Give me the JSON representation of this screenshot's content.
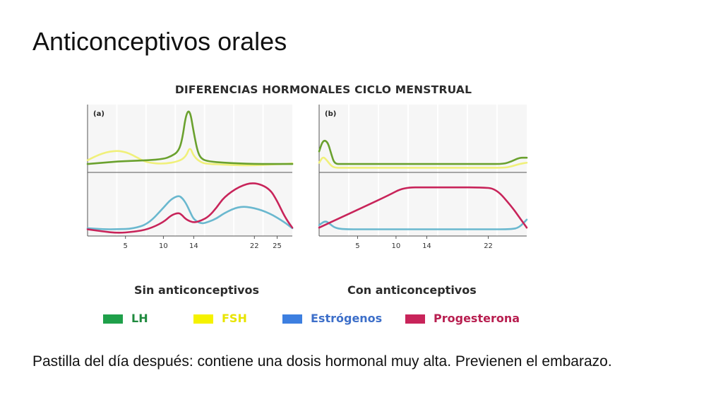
{
  "slide": {
    "title": "Anticonceptivos orales",
    "body_text": "Pastilla del día después: contiene una dosis hormonal muy alta. Previenen el embarazo."
  },
  "colors": {
    "lh": "#6aa12e",
    "fsh": "#f0f07a",
    "estrogenos": "#6ab8cf",
    "progesterona": "#c8245a",
    "legend_lh": "#1fa04a",
    "legend_fsh": "#f5f200",
    "legend_estrogenos": "#3d7fe0",
    "legend_progesterona": "#c8245a"
  },
  "chart_data": {
    "type": "line",
    "title": "DIFERENCIAS HORMONALES CICLO MENSTRUAL",
    "legend": [
      "LH",
      "FSH",
      "Estrógenos",
      "Progesterona"
    ],
    "legend_placement": "bottom",
    "panels": [
      {
        "id": "a",
        "label": "(a)",
        "subtitle": "Sin anticonceptivos",
        "x_ticks": [
          5,
          10,
          14,
          22,
          25
        ],
        "xlim": [
          0,
          27
        ],
        "ylim": [
          0,
          100
        ],
        "top_series": [
          {
            "name": "LH",
            "x": [
              0,
              2,
              4,
              6,
              8,
              10,
              11,
              12,
              12.5,
              13,
              13.5,
              14,
              14.5,
              15,
              16,
              18,
              20,
              22,
              24,
              26,
              27
            ],
            "y": [
              10,
              12,
              14,
              15,
              16,
              18,
              22,
              30,
              50,
              90,
              96,
              60,
              30,
              18,
              14,
              12,
              11,
              10,
              10,
              10,
              10
            ]
          },
          {
            "name": "FSH",
            "x": [
              0,
              1,
              2,
              3,
              4,
              5,
              6,
              7,
              8,
              10,
              12,
              13,
              13.5,
              14,
              15,
              16,
              18,
              20,
              22,
              24,
              26,
              27
            ],
            "y": [
              16,
              22,
              27,
              30,
              31,
              29,
              24,
              17,
              12,
              10,
              14,
              22,
              38,
              22,
              12,
              10,
              9,
              8,
              8,
              9,
              10,
              11
            ]
          }
        ],
        "bottom_series": [
          {
            "name": "Estrógenos",
            "x": [
              0,
              2,
              4,
              6,
              8,
              10,
              11,
              12,
              12.5,
              13,
              13.5,
              14,
              15,
              16,
              17,
              18,
              20,
              22,
              24,
              26,
              27
            ],
            "y": [
              4,
              2,
              2,
              3,
              12,
              42,
              58,
              65,
              60,
              50,
              35,
              20,
              12,
              16,
              22,
              32,
              45,
              42,
              32,
              15,
              4
            ]
          },
          {
            "name": "Progesterona",
            "x": [
              0,
              2,
              4,
              6,
              8,
              10,
              11,
              12,
              12.5,
              13,
              14,
              15,
              16,
              17,
              18,
              20,
              22,
              24,
              25,
              26,
              27
            ],
            "y": [
              2,
              -2,
              -5,
              -3,
              2,
              15,
              28,
              33,
              28,
              20,
              14,
              18,
              26,
              42,
              62,
              82,
              90,
              78,
              55,
              25,
              5
            ]
          }
        ]
      },
      {
        "id": "b",
        "label": "(b)",
        "subtitle": "Con anticonceptivos",
        "x_ticks": [
          5,
          10,
          14,
          22
        ],
        "xlim": [
          0,
          27
        ],
        "ylim": [
          0,
          100
        ],
        "top_series": [
          {
            "name": "LH",
            "x": [
              0,
              0.4,
              0.8,
              1.2,
              1.6,
              2,
              3,
              6,
              10,
              14,
              18,
              22,
              24,
              25,
              26,
              27
            ],
            "y": [
              30,
              45,
              48,
              42,
              25,
              10,
              10,
              10,
              10,
              10,
              10,
              10,
              10,
              14,
              20,
              20
            ]
          },
          {
            "name": "FSH",
            "x": [
              0,
              0.5,
              1,
              1.5,
              2,
              3,
              6,
              10,
              14,
              18,
              22,
              24,
              25,
              26,
              27
            ],
            "y": [
              12,
              22,
              16,
              8,
              4,
              4,
              4,
              4,
              4,
              4,
              4,
              4,
              6,
              10,
              12
            ]
          }
        ],
        "bottom_series": [
          {
            "name": "Estrógenos",
            "x": [
              0,
              0.8,
              1.4,
              2,
              3,
              6,
              10,
              14,
              18,
              22,
              25,
              26,
              27
            ],
            "y": [
              10,
              18,
              12,
              5,
              2,
              2,
              2,
              2,
              2,
              2,
              2,
              5,
              20
            ]
          },
          {
            "name": "Progesterona",
            "x": [
              0,
              3,
              6,
              9,
              11,
              14,
              18,
              21,
              23,
              25,
              26,
              27
            ],
            "y": [
              5,
              25,
              45,
              65,
              80,
              80,
              80,
              80,
              78,
              45,
              25,
              5
            ]
          }
        ]
      }
    ]
  }
}
